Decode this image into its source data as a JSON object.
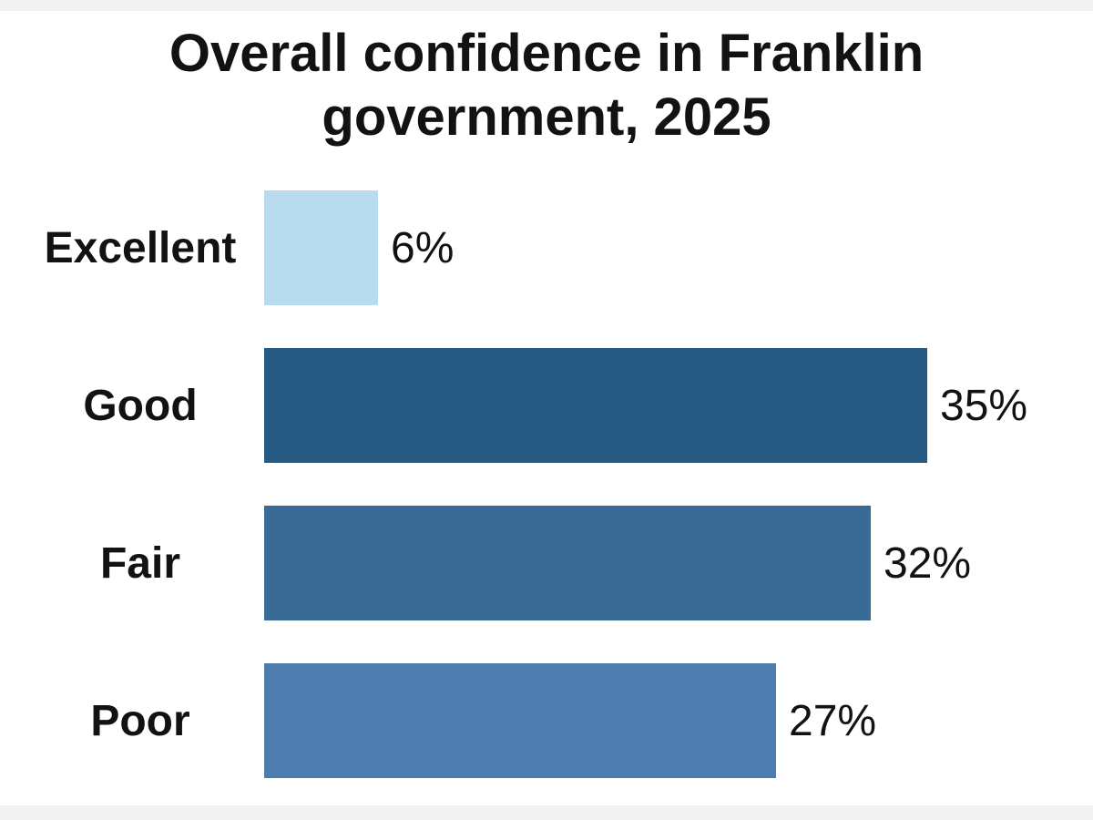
{
  "page": {
    "background_color": "#ffffff",
    "border_strip_color": "#f2f2f2"
  },
  "chart_data": {
    "type": "bar",
    "orientation": "horizontal",
    "title": "Overall confidence in Franklin government, 2025",
    "categories": [
      "Excellent",
      "Good",
      "Fair",
      "Poor"
    ],
    "values": [
      6,
      35,
      32,
      27
    ],
    "value_labels": [
      "6%",
      "35%",
      "32%",
      "27%"
    ],
    "bar_colors": [
      "#B9DBEE",
      "#275A83",
      "#3A6A96",
      "#4C7DAE"
    ],
    "text_color": "#121212",
    "xlim": [
      0,
      44
    ],
    "grid": false,
    "legend": false,
    "value_label_position": "outside-end",
    "category_label_position": "left"
  }
}
